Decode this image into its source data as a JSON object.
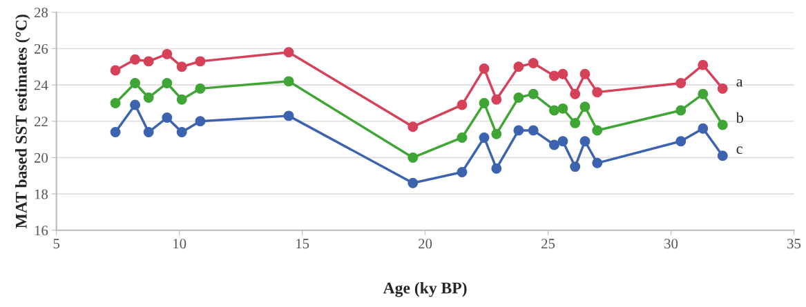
{
  "chart_data": {
    "type": "line",
    "xlabel": "Age (ky BP)",
    "ylabel": "MAT based SST estimates (°C)",
    "x": [
      7.4,
      8.2,
      8.75,
      9.5,
      10.1,
      10.85,
      14.45,
      19.5,
      21.5,
      22.4,
      22.9,
      23.8,
      24.4,
      25.25,
      25.6,
      26.1,
      26.5,
      27.0,
      30.4,
      31.3,
      32.1
    ],
    "series": [
      {
        "name": "a",
        "color": "#d6415a",
        "values": [
          24.8,
          25.4,
          25.3,
          25.7,
          25.0,
          25.3,
          25.8,
          21.7,
          22.9,
          24.9,
          23.2,
          25.0,
          25.2,
          24.5,
          24.6,
          23.5,
          24.6,
          23.6,
          24.1,
          25.1,
          23.8
        ]
      },
      {
        "name": "b",
        "color": "#3fa535",
        "values": [
          23.0,
          24.1,
          23.3,
          24.1,
          23.2,
          23.8,
          24.2,
          20.0,
          21.1,
          23.0,
          21.3,
          23.3,
          23.5,
          22.6,
          22.7,
          21.9,
          22.8,
          21.5,
          22.6,
          23.5,
          21.8
        ]
      },
      {
        "name": "c",
        "color": "#3d63ae",
        "values": [
          21.4,
          22.9,
          21.4,
          22.2,
          21.4,
          22.0,
          22.3,
          18.6,
          19.2,
          21.1,
          19.4,
          21.5,
          21.5,
          20.7,
          20.9,
          19.5,
          20.9,
          19.7,
          20.9,
          21.6,
          20.1
        ]
      }
    ],
    "xlim": [
      5,
      35
    ],
    "xticks": [
      5,
      10,
      15,
      20,
      25,
      30,
      35
    ],
    "ylim": [
      16,
      28
    ],
    "yticks": [
      16,
      18,
      20,
      22,
      24,
      26,
      28
    ],
    "grid": "y",
    "legend": false,
    "marker": "circle",
    "line_style": "solid"
  }
}
